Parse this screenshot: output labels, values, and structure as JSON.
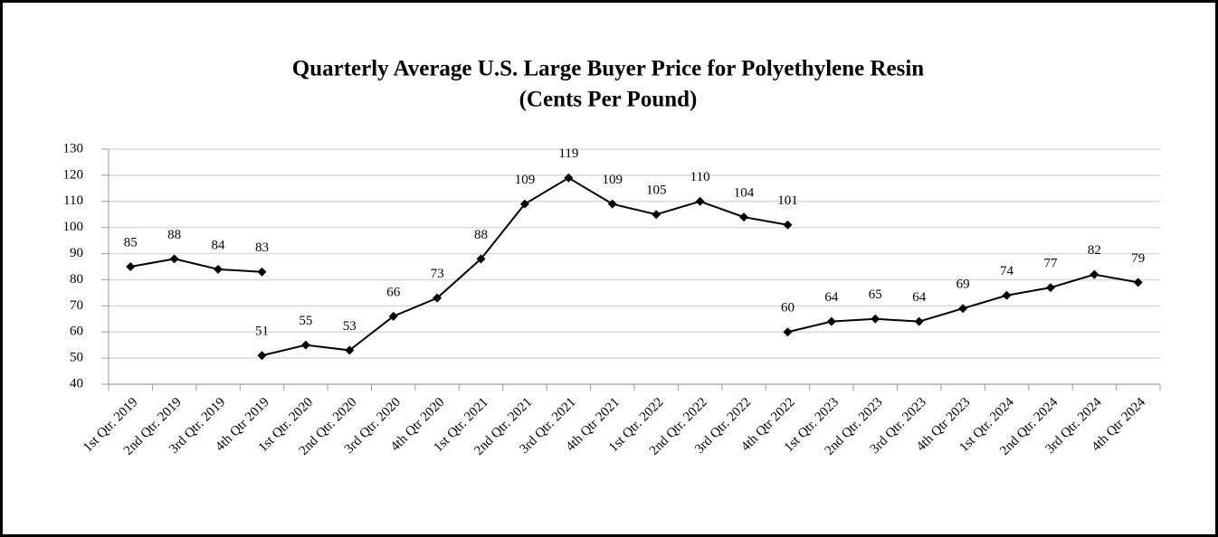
{
  "chart_data": {
    "type": "line",
    "title": "Quarterly Average U.S. Large Buyer Price for Polyethylene Resin",
    "subtitle": "(Cents Per Pound)",
    "categories": [
      "1st Qtr. 2019",
      "2nd Qtr. 2019",
      "3rd Qtr. 2019",
      "4th Qtr 2019",
      "1st Qtr. 2020",
      "2nd Qtr. 2020",
      "3rd Qtr. 2020",
      "4th Qtr 2020",
      "1st Qtr. 2021",
      "2nd Qtr. 2021",
      "3rd Qtr. 2021",
      "4th Qtr 2021",
      "1st Qtr. 2022",
      "2nd Qtr. 2022",
      "3rd Qtr. 2022",
      "4th Qtr 2022",
      "1st Qtr. 2023",
      "2nd Qtr. 2023",
      "3rd Qtr. 2023",
      "4th Qtr 2023",
      "1st Qtr. 2024",
      "2nd Qtr. 2024",
      "3rd Qtr. 2024",
      "4th Qtr 2024"
    ],
    "series": [
      {
        "color": "#000000",
        "values": [
          85,
          88,
          84,
          83,
          null,
          null,
          null,
          null,
          null,
          null,
          null,
          null,
          null,
          null,
          null,
          null,
          null,
          null,
          null,
          null,
          null,
          null,
          null,
          null
        ]
      },
      {
        "color": "#000000",
        "values": [
          null,
          null,
          null,
          51,
          55,
          53,
          66,
          73,
          88,
          109,
          119,
          109,
          105,
          110,
          104,
          101,
          null,
          null,
          null,
          null,
          null,
          null,
          null,
          null
        ]
      },
      {
        "color": "#000000",
        "values": [
          null,
          null,
          null,
          null,
          null,
          null,
          null,
          null,
          null,
          null,
          null,
          null,
          null,
          null,
          null,
          60,
          64,
          65,
          64,
          69,
          74,
          77,
          82,
          79
        ]
      }
    ],
    "ylim": [
      40,
      130
    ],
    "yticks": [
      40,
      50,
      60,
      70,
      80,
      90,
      100,
      110,
      120,
      130
    ],
    "grid": true,
    "data_labels": true
  }
}
